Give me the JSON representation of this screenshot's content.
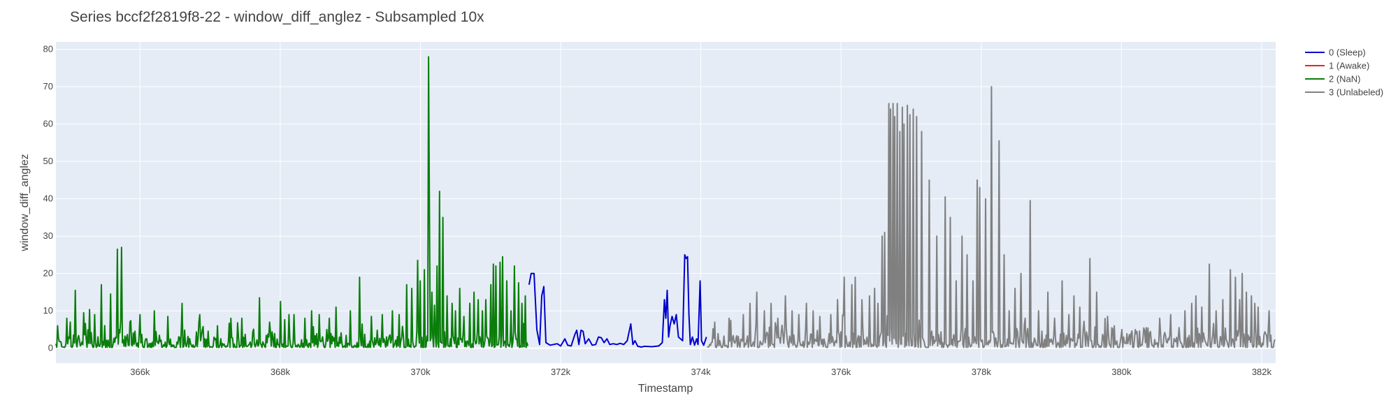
{
  "chart_data": {
    "type": "line",
    "title": "Series bccf2f2819f8-22 - window_diff_anglez - Subsampled 10x",
    "xlabel": "Timestamp",
    "ylabel": "window_diff_anglez",
    "xlim": [
      364800,
      382200
    ],
    "ylim": [
      -4,
      82
    ],
    "x_ticks": [
      366000,
      368000,
      370000,
      372000,
      374000,
      376000,
      378000,
      380000,
      382000
    ],
    "x_tick_labels": [
      "366k",
      "368k",
      "370k",
      "372k",
      "374k",
      "376k",
      "378k",
      "380k",
      "382k"
    ],
    "y_ticks": [
      0,
      10,
      20,
      30,
      40,
      50,
      60,
      70,
      80
    ],
    "y_tick_labels": [
      "0",
      "10",
      "20",
      "30",
      "40",
      "50",
      "60",
      "70",
      "80"
    ],
    "grid": true,
    "legend_position": "top-right",
    "series": [
      {
        "name": "0 (Sleep)",
        "color": "#0000cc",
        "points": [
          [
            371550,
            17
          ],
          [
            371580,
            20
          ],
          [
            371620,
            20
          ],
          [
            371660,
            5
          ],
          [
            371700,
            1
          ],
          [
            371730,
            14
          ],
          [
            371760,
            16.5
          ],
          [
            371790,
            1.5
          ],
          [
            371850,
            0.8
          ],
          [
            371950,
            1.2
          ],
          [
            372000,
            0.6
          ],
          [
            372060,
            2.5
          ],
          [
            372100,
            0.8
          ],
          [
            372150,
            0.6
          ],
          [
            372200,
            3.5
          ],
          [
            372230,
            4.8
          ],
          [
            372260,
            1
          ],
          [
            372290,
            4.8
          ],
          [
            372320,
            4.5
          ],
          [
            372350,
            1.2
          ],
          [
            372400,
            2.5
          ],
          [
            372450,
            0.8
          ],
          [
            372500,
            1
          ],
          [
            372540,
            3
          ],
          [
            372580,
            2.8
          ],
          [
            372620,
            1.5
          ],
          [
            372660,
            2.5
          ],
          [
            372700,
            1
          ],
          [
            372750,
            1.2
          ],
          [
            372800,
            1
          ],
          [
            372850,
            1.3
          ],
          [
            372900,
            1
          ],
          [
            372950,
            2
          ],
          [
            373000,
            6.5
          ],
          [
            373030,
            1
          ],
          [
            373060,
            2
          ],
          [
            373100,
            0.5
          ],
          [
            373150,
            0.3
          ],
          [
            373200,
            0.5
          ],
          [
            373300,
            0.4
          ],
          [
            373400,
            0.6
          ],
          [
            373450,
            1.5
          ],
          [
            373480,
            13
          ],
          [
            373500,
            8
          ],
          [
            373520,
            15.5
          ],
          [
            373540,
            3
          ],
          [
            373560,
            6
          ],
          [
            373590,
            8.5
          ],
          [
            373620,
            6.5
          ],
          [
            373650,
            9
          ],
          [
            373680,
            3
          ],
          [
            373710,
            2.5
          ],
          [
            373740,
            2
          ],
          [
            373770,
            25
          ],
          [
            373790,
            24
          ],
          [
            373810,
            24.5
          ],
          [
            373830,
            9
          ],
          [
            373850,
            1
          ],
          [
            373880,
            3
          ],
          [
            373910,
            0.8
          ],
          [
            373940,
            2.5
          ],
          [
            373960,
            1
          ],
          [
            373990,
            18
          ],
          [
            374010,
            2
          ],
          [
            374040,
            0.8
          ],
          [
            374080,
            3
          ]
        ]
      },
      {
        "name": "1 (Awake)",
        "color": "#e8231e",
        "points": []
      },
      {
        "name": "2 (NaN)",
        "color": "#0a7d0a",
        "points": [],
        "generator": {
          "x0": 364800,
          "x1": 371540,
          "step": 12,
          "base": 1.8,
          "seed": 7,
          "spikes": [
            [
              364950,
              8
            ],
            [
              365000,
              7
            ],
            [
              365080,
              15.5
            ],
            [
              365200,
              9.5
            ],
            [
              365350,
              9
            ],
            [
              365450,
              17
            ],
            [
              365580,
              14.5
            ],
            [
              365680,
              26.5
            ],
            [
              365730,
              27
            ],
            [
              365850,
              7
            ],
            [
              366000,
              9
            ],
            [
              366200,
              10
            ],
            [
              366400,
              8.5
            ],
            [
              366600,
              12
            ],
            [
              366850,
              9
            ],
            [
              367100,
              6
            ],
            [
              367300,
              8
            ],
            [
              367450,
              8
            ],
            [
              367700,
              13.5
            ],
            [
              367850,
              7
            ],
            [
              368000,
              12.5
            ],
            [
              368120,
              9
            ],
            [
              368200,
              9
            ],
            [
              368350,
              8
            ],
            [
              368450,
              10
            ],
            [
              368550,
              9
            ],
            [
              368700,
              8
            ],
            [
              368800,
              11
            ],
            [
              369000,
              10
            ],
            [
              369130,
              19
            ],
            [
              369300,
              8.5
            ],
            [
              369450,
              9
            ],
            [
              369600,
              10
            ],
            [
              369700,
              9
            ],
            [
              369800,
              17
            ],
            [
              369880,
              16
            ],
            [
              369960,
              23.5
            ],
            [
              370000,
              18
            ],
            [
              370060,
              21
            ],
            [
              370110,
              78
            ],
            [
              370130,
              38
            ],
            [
              370160,
              15
            ],
            [
              370200,
              11.5
            ],
            [
              370240,
              22
            ],
            [
              370270,
              42
            ],
            [
              370320,
              35
            ],
            [
              370380,
              14
            ],
            [
              370450,
              12
            ],
            [
              370500,
              10
            ],
            [
              370560,
              16
            ],
            [
              370620,
              8.5
            ],
            [
              370700,
              12
            ],
            [
              370760,
              15
            ],
            [
              370820,
              13
            ],
            [
              370880,
              10
            ],
            [
              370930,
              13
            ],
            [
              371000,
              17
            ],
            [
              371040,
              22.5
            ],
            [
              371080,
              22
            ],
            [
              371130,
              23
            ],
            [
              371170,
              24.5
            ],
            [
              371230,
              18
            ],
            [
              371290,
              10
            ],
            [
              371340,
              22
            ],
            [
              371400,
              17.5
            ],
            [
              371450,
              12
            ],
            [
              371500,
              14
            ]
          ]
        }
      },
      {
        "name": "3 (Unlabeled)",
        "color": "#808080",
        "points": [],
        "generator": {
          "x0": 374090,
          "x1": 382200,
          "step": 12,
          "base": 2.0,
          "seed": 11,
          "spikes": [
            [
              374200,
              7
            ],
            [
              374400,
              8
            ],
            [
              374600,
              9
            ],
            [
              374700,
              12
            ],
            [
              374800,
              15
            ],
            [
              374900,
              10
            ],
            [
              375000,
              12
            ],
            [
              375100,
              8
            ],
            [
              375200,
              14
            ],
            [
              375300,
              10
            ],
            [
              375400,
              9
            ],
            [
              375500,
              12
            ],
            [
              375600,
              10
            ],
            [
              375700,
              8.5
            ],
            [
              375850,
              9
            ],
            [
              375950,
              13
            ],
            [
              376050,
              19
            ],
            [
              376150,
              17
            ],
            [
              376200,
              19
            ],
            [
              376300,
              13
            ],
            [
              376400,
              14
            ],
            [
              376480,
              16
            ],
            [
              376530,
              12
            ],
            [
              376580,
              30
            ],
            [
              376620,
              31
            ],
            [
              376680,
              65.5
            ],
            [
              376710,
              64
            ],
            [
              376740,
              65.5
            ],
            [
              376770,
              62
            ],
            [
              376800,
              65.5
            ],
            [
              376840,
              58
            ],
            [
              376870,
              64.5
            ],
            [
              376900,
              60
            ],
            [
              376940,
              65
            ],
            [
              376980,
              62.5
            ],
            [
              377030,
              64
            ],
            [
              377080,
              62
            ],
            [
              377150,
              58
            ],
            [
              377260,
              45
            ],
            [
              377360,
              30
            ],
            [
              377480,
              40.5
            ],
            [
              377560,
              35
            ],
            [
              377640,
              18
            ],
            [
              377720,
              30
            ],
            [
              377800,
              25
            ],
            [
              377880,
              18
            ],
            [
              377940,
              45
            ],
            [
              377980,
              43
            ],
            [
              378060,
              40
            ],
            [
              378150,
              70
            ],
            [
              378250,
              55.5
            ],
            [
              378320,
              25
            ],
            [
              378400,
              10
            ],
            [
              378480,
              16
            ],
            [
              378560,
              20
            ],
            [
              378700,
              39.5
            ],
            [
              378820,
              10
            ],
            [
              378950,
              15
            ],
            [
              379050,
              8
            ],
            [
              379150,
              18
            ],
            [
              379250,
              9
            ],
            [
              379320,
              14
            ],
            [
              379400,
              11
            ],
            [
              379550,
              24
            ],
            [
              379650,
              15
            ],
            [
              379800,
              8.5
            ],
            [
              380000,
              5
            ],
            [
              380200,
              5
            ],
            [
              380400,
              4
            ],
            [
              380550,
              8
            ],
            [
              380700,
              9
            ],
            [
              380900,
              10
            ],
            [
              381000,
              12
            ],
            [
              381060,
              14
            ],
            [
              381150,
              11
            ],
            [
              381250,
              22.5
            ],
            [
              381350,
              10
            ],
            [
              381450,
              13
            ],
            [
              381550,
              21
            ],
            [
              381620,
              19
            ],
            [
              381680,
              13
            ],
            [
              381720,
              20
            ],
            [
              381780,
              15
            ],
            [
              381850,
              14
            ],
            [
              381900,
              12
            ],
            [
              381950,
              11
            ],
            [
              382100,
              10
            ]
          ]
        }
      }
    ]
  }
}
